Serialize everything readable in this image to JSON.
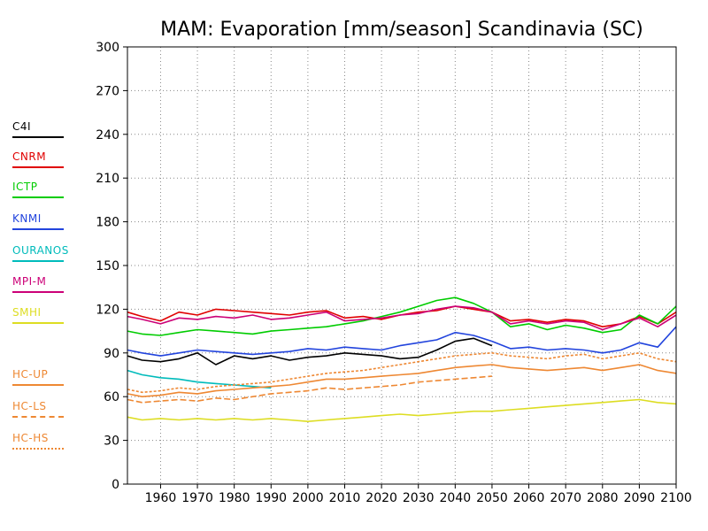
{
  "chart_data": {
    "type": "line",
    "title": "MAM: Evaporation [mm/season] Scandinavia (SC)",
    "xlabel": "",
    "ylabel": "",
    "xlim": [
      1951,
      2100
    ],
    "ylim": [
      0,
      300
    ],
    "x_ticks": [
      "1960",
      "1970",
      "1980",
      "1990",
      "2000",
      "2010",
      "2020",
      "2030",
      "2040",
      "2050",
      "2060",
      "2070",
      "2080",
      "2090",
      "2100"
    ],
    "y_ticks": [
      "0",
      "30",
      "60",
      "90",
      "120",
      "150",
      "180",
      "210",
      "240",
      "270",
      "300"
    ],
    "grid": true,
    "legend_position": "left",
    "series": [
      {
        "name": "C4I",
        "color": "#000000",
        "style": "solid",
        "x": [
          1951,
          1955,
          1960,
          1965,
          1970,
          1975,
          1980,
          1985,
          1990,
          1995,
          2000,
          2005,
          2010,
          2015,
          2020,
          2025,
          2030,
          2035,
          2040,
          2045,
          2050
        ],
        "y": [
          88,
          85,
          84,
          86,
          90,
          82,
          88,
          86,
          88,
          85,
          87,
          88,
          90,
          89,
          88,
          86,
          87,
          92,
          98,
          100,
          95
        ]
      },
      {
        "name": "CNRM",
        "color": "#e00000",
        "style": "solid",
        "x": [
          1951,
          1955,
          1960,
          1965,
          1970,
          1975,
          1980,
          1985,
          1990,
          1995,
          2000,
          2005,
          2010,
          2015,
          2020,
          2025,
          2030,
          2035,
          2040,
          2045,
          2050,
          2055,
          2060,
          2065,
          2070,
          2075,
          2080,
          2085,
          2090,
          2095,
          2100
        ],
        "y": [
          118,
          115,
          112,
          118,
          116,
          120,
          119,
          118,
          117,
          116,
          118,
          119,
          114,
          115,
          113,
          116,
          118,
          119,
          122,
          120,
          118,
          112,
          113,
          111,
          113,
          112,
          108,
          110,
          115,
          110,
          118
        ]
      },
      {
        "name": "ICTP",
        "color": "#00cc00",
        "style": "solid",
        "x": [
          1951,
          1955,
          1960,
          1965,
          1970,
          1975,
          1980,
          1985,
          1990,
          1995,
          2000,
          2005,
          2010,
          2015,
          2020,
          2025,
          2030,
          2035,
          2040,
          2045,
          2050,
          2055,
          2060,
          2065,
          2070,
          2075,
          2080,
          2085,
          2090,
          2095,
          2100
        ],
        "y": [
          105,
          103,
          102,
          104,
          106,
          105,
          104,
          103,
          105,
          106,
          107,
          108,
          110,
          112,
          115,
          118,
          122,
          126,
          128,
          124,
          118,
          108,
          110,
          106,
          109,
          107,
          104,
          106,
          116,
          110,
          122
        ]
      },
      {
        "name": "KNMI",
        "color": "#2244dd",
        "style": "solid",
        "x": [
          1951,
          1955,
          1960,
          1965,
          1970,
          1975,
          1980,
          1985,
          1990,
          1995,
          2000,
          2005,
          2010,
          2015,
          2020,
          2025,
          2030,
          2035,
          2040,
          2045,
          2050,
          2055,
          2060,
          2065,
          2070,
          2075,
          2080,
          2085,
          2090,
          2095,
          2100
        ],
        "y": [
          92,
          90,
          88,
          90,
          92,
          91,
          90,
          89,
          90,
          91,
          93,
          92,
          94,
          93,
          92,
          95,
          97,
          99,
          104,
          102,
          98,
          93,
          94,
          92,
          93,
          92,
          90,
          92,
          97,
          94,
          108
        ]
      },
      {
        "name": "OURANOS",
        "color": "#00bbbb",
        "style": "solid",
        "x": [
          1951,
          1955,
          1960,
          1965,
          1970,
          1975,
          1980,
          1985,
          1990
        ],
        "y": [
          78,
          75,
          73,
          72,
          70,
          69,
          68,
          67,
          66
        ]
      },
      {
        "name": "MPI-M",
        "color": "#cc0077",
        "style": "solid",
        "x": [
          1951,
          1955,
          1960,
          1965,
          1970,
          1975,
          1980,
          1985,
          1990,
          1995,
          2000,
          2005,
          2010,
          2015,
          2020,
          2025,
          2030,
          2035,
          2040,
          2045,
          2050,
          2055,
          2060,
          2065,
          2070,
          2075,
          2080,
          2085,
          2090,
          2095,
          2100
        ],
        "y": [
          115,
          113,
          110,
          114,
          113,
          115,
          114,
          116,
          113,
          114,
          116,
          118,
          112,
          113,
          114,
          116,
          117,
          120,
          122,
          121,
          118,
          110,
          112,
          110,
          112,
          111,
          106,
          110,
          114,
          108,
          116
        ]
      },
      {
        "name": "SMHI",
        "color": "#dddd22",
        "style": "solid",
        "x": [
          1951,
          1955,
          1960,
          1965,
          1970,
          1975,
          1980,
          1985,
          1990,
          1995,
          2000,
          2005,
          2010,
          2015,
          2020,
          2025,
          2030,
          2035,
          2040,
          2045,
          2050,
          2055,
          2060,
          2065,
          2070,
          2075,
          2080,
          2085,
          2090,
          2095,
          2100
        ],
        "y": [
          46,
          44,
          45,
          44,
          45,
          44,
          45,
          44,
          45,
          44,
          43,
          44,
          45,
          46,
          47,
          48,
          47,
          48,
          49,
          50,
          50,
          51,
          52,
          53,
          54,
          55,
          56,
          57,
          58,
          56,
          55
        ]
      },
      {
        "name": "HC-UP",
        "color": "#ee8833",
        "style": "solid",
        "x": [
          1951,
          1955,
          1960,
          1965,
          1970,
          1975,
          1980,
          1985,
          1990,
          1995,
          2000,
          2005,
          2010,
          2015,
          2020,
          2025,
          2030,
          2035,
          2040,
          2045,
          2050,
          2055,
          2060,
          2065,
          2070,
          2075,
          2080,
          2085,
          2090,
          2095,
          2100
        ],
        "y": [
          62,
          60,
          61,
          63,
          62,
          64,
          65,
          66,
          67,
          68,
          70,
          72,
          72,
          73,
          74,
          75,
          76,
          78,
          80,
          81,
          82,
          80,
          79,
          78,
          79,
          80,
          78,
          80,
          82,
          78,
          76
        ]
      },
      {
        "name": "HC-LS",
        "color": "#ee8833",
        "style": "longdash",
        "x": [
          1951,
          1955,
          1960,
          1965,
          1970,
          1975,
          1980,
          1985,
          1990,
          1995,
          2000,
          2005,
          2010,
          2015,
          2020,
          2025,
          2030,
          2035,
          2040,
          2045,
          2050
        ],
        "y": [
          58,
          56,
          57,
          58,
          57,
          59,
          58,
          60,
          62,
          63,
          64,
          66,
          65,
          66,
          67,
          68,
          70,
          71,
          72,
          73,
          74
        ]
      },
      {
        "name": "HC-HS",
        "color": "#ee8833",
        "style": "dotted",
        "x": [
          1951,
          1955,
          1960,
          1965,
          1970,
          1975,
          1980,
          1985,
          1990,
          1995,
          2000,
          2005,
          2010,
          2015,
          2020,
          2025,
          2030,
          2035,
          2040,
          2045,
          2050,
          2055,
          2060,
          2065,
          2070,
          2075,
          2080,
          2085,
          2090,
          2095,
          2100
        ],
        "y": [
          65,
          63,
          64,
          66,
          65,
          67,
          68,
          69,
          70,
          72,
          74,
          76,
          77,
          78,
          80,
          82,
          84,
          86,
          88,
          89,
          90,
          88,
          87,
          86,
          88,
          89,
          86,
          88,
          90,
          86,
          84
        ]
      }
    ]
  }
}
